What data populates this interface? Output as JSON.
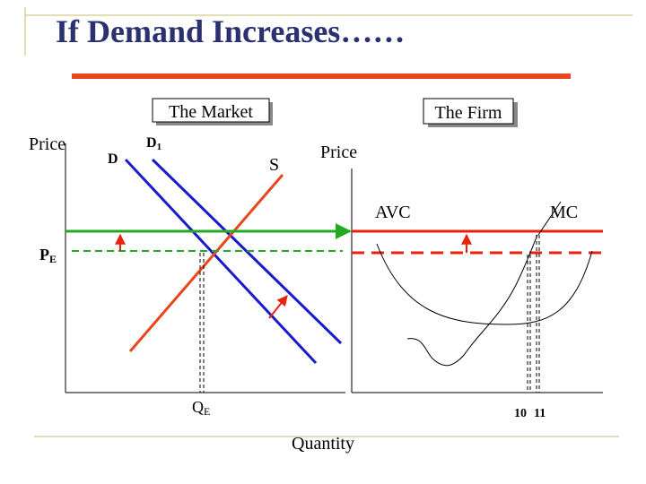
{
  "slide": {
    "title": "If Demand Increases……",
    "colors": {
      "title": "#2a3070",
      "accent_bar": "#e8471d",
      "frame_lines": "#c9b86a",
      "supply": "#e8471d",
      "demand": "#1a1acc",
      "new_price": "#22aa22",
      "firm_price": "#e8220d",
      "arrow": "#e8220d"
    }
  },
  "market": {
    "label": "The Market",
    "y_axis_label": "Price",
    "demand_label": "D",
    "new_demand_label": "D1",
    "supply_label": "S",
    "price_label": "PE",
    "quantity_label": "QE"
  },
  "firm": {
    "label": "The Firm",
    "y_axis_label": "Price",
    "avc_label": "AVC",
    "mc_label": "MC",
    "tick_10": "10",
    "tick_11": "11",
    "x_axis_label": "Quantity"
  }
}
